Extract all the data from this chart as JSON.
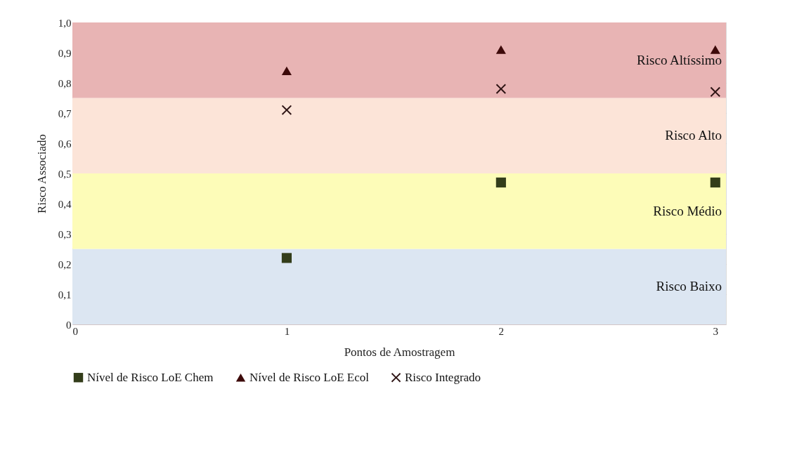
{
  "chart_data": {
    "type": "scatter",
    "xlabel": "Pontos de Amostragem",
    "ylabel": "Risco Associado",
    "xlim": [
      0,
      3.05
    ],
    "xticks": [
      0,
      1,
      2,
      3
    ],
    "ylim": [
      0,
      1.0
    ],
    "yticks": [
      0,
      {
        "value": 0.1,
        "label": "0,1"
      },
      {
        "value": 0.2,
        "label": "0,2"
      },
      {
        "value": 0.3,
        "label": "0,3"
      },
      {
        "value": 0.4,
        "label": "0,4"
      },
      {
        "value": 0.5,
        "label": "0,5"
      },
      {
        "value": 0.6,
        "label": "0,6"
      },
      {
        "value": 0.7,
        "label": "0,7"
      },
      {
        "value": 0.8,
        "label": "0,8"
      },
      {
        "value": 0.9,
        "label": "0,9"
      },
      {
        "value": 1.0,
        "label": "1,0"
      }
    ],
    "grid": "y",
    "legend": "bottom",
    "x": [
      1,
      2,
      3
    ],
    "series": [
      {
        "name": "Nível de Risco LoE Chem",
        "color": "#333d1a",
        "marker": "square",
        "values": [
          0.22,
          0.47,
          0.47
        ]
      },
      {
        "name": "Nível de Risco LoE Ecol",
        "color": "#3d0a0a",
        "marker": "triangle",
        "values": [
          0.84,
          0.91,
          0.91
        ]
      },
      {
        "name": "Risco Integrado",
        "color": "#2e1414",
        "marker": "cross",
        "values": [
          0.71,
          0.78,
          0.77
        ]
      }
    ],
    "bands": [
      {
        "axis": "y",
        "from": 0,
        "to": 0.25,
        "label": "Risco Baixo",
        "color": "#dce6f2"
      },
      {
        "axis": "y",
        "from": 0.25,
        "to": 0.5,
        "label": "Risco Médio",
        "color": "#fdfcb8"
      },
      {
        "axis": "y",
        "from": 0.5,
        "to": 0.75,
        "label": "Risco Alto",
        "color": "#fce4d8"
      },
      {
        "axis": "y",
        "from": 0.75,
        "to": 1.0,
        "label": "Risco Altíssimo",
        "color": "#e8b4b4"
      }
    ]
  }
}
